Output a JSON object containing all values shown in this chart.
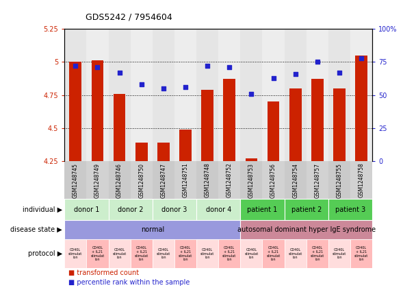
{
  "title": "GDS5242 / 7954604",
  "samples": [
    "GSM1248745",
    "GSM1248749",
    "GSM1248746",
    "GSM1248750",
    "GSM1248747",
    "GSM1248751",
    "GSM1248748",
    "GSM1248752",
    "GSM1248753",
    "GSM1248756",
    "GSM1248754",
    "GSM1248757",
    "GSM1248755",
    "GSM1248758"
  ],
  "bar_values": [
    5.0,
    5.01,
    4.76,
    4.39,
    4.39,
    4.49,
    4.79,
    4.87,
    4.27,
    4.7,
    4.8,
    4.87,
    4.8,
    5.05
  ],
  "blue_values": [
    72,
    71,
    67,
    58,
    55,
    56,
    72,
    71,
    51,
    63,
    66,
    75,
    67,
    78
  ],
  "ylim_left": [
    4.25,
    5.25
  ],
  "ylim_right": [
    0,
    100
  ],
  "yticks_left": [
    4.25,
    4.5,
    4.75,
    5.0,
    5.25
  ],
  "yticks_left_labels": [
    "4.25",
    "4.5",
    "4.75",
    "5",
    "5.25"
  ],
  "yticks_right": [
    0,
    25,
    50,
    75,
    100
  ],
  "yticks_right_labels": [
    "0",
    "25",
    "50",
    "75",
    "100%"
  ],
  "hlines": [
    4.5,
    4.75,
    5.0
  ],
  "bar_color": "#cc2200",
  "blue_color": "#2222cc",
  "individual_groups": [
    {
      "label": "donor 1",
      "start": 0,
      "end": 2,
      "color": "#cceecc"
    },
    {
      "label": "donor 2",
      "start": 2,
      "end": 4,
      "color": "#cceecc"
    },
    {
      "label": "donor 3",
      "start": 4,
      "end": 6,
      "color": "#cceecc"
    },
    {
      "label": "donor 4",
      "start": 6,
      "end": 8,
      "color": "#cceecc"
    },
    {
      "label": "patient 1",
      "start": 8,
      "end": 10,
      "color": "#55cc55"
    },
    {
      "label": "patient 2",
      "start": 10,
      "end": 12,
      "color": "#55cc55"
    },
    {
      "label": "patient 3",
      "start": 12,
      "end": 14,
      "color": "#55cc55"
    }
  ],
  "disease_groups": [
    {
      "label": "normal",
      "start": 0,
      "end": 8,
      "color": "#9999dd"
    },
    {
      "label": "autosomal dominant hyper IgE syndrome",
      "start": 8,
      "end": 14,
      "color": "#cc8899"
    }
  ],
  "protocol_labels": [
    "CD40L\nstimulat\nion",
    "CD40L\n+ IL21\nstimulat\nion",
    "CD40L\nstimulat\nion",
    "CD40L\n+ IL21\nstimulat\nion",
    "CD40L\nstimulat\nion",
    "CD40L\n+ IL21\nstimulat\nion",
    "CD40L\nstimulat\nion",
    "CD40L\n+ IL21\nstimulat\nion",
    "CD40L\nstimulat\nion",
    "CD40L\n+ IL21\nstimulat\nion",
    "CD40L\nstimulat\nion",
    "CD40L\n+ IL21\nstimulat\nion",
    "CD40L\nstimulat\nion",
    "CD40L\n+ IL21\nstimulat\nion"
  ],
  "protocol_colors_odd": "#ffbbbb",
  "protocol_colors_even": "#ffdddd",
  "row_labels": [
    "individual",
    "disease state",
    "protocol"
  ],
  "legend_bar_label": "transformed count",
  "legend_blue_label": "percentile rank within the sample",
  "col_bg_odd": "#cccccc",
  "col_bg_even": "#dddddd",
  "plot_bg": "#ffffff"
}
